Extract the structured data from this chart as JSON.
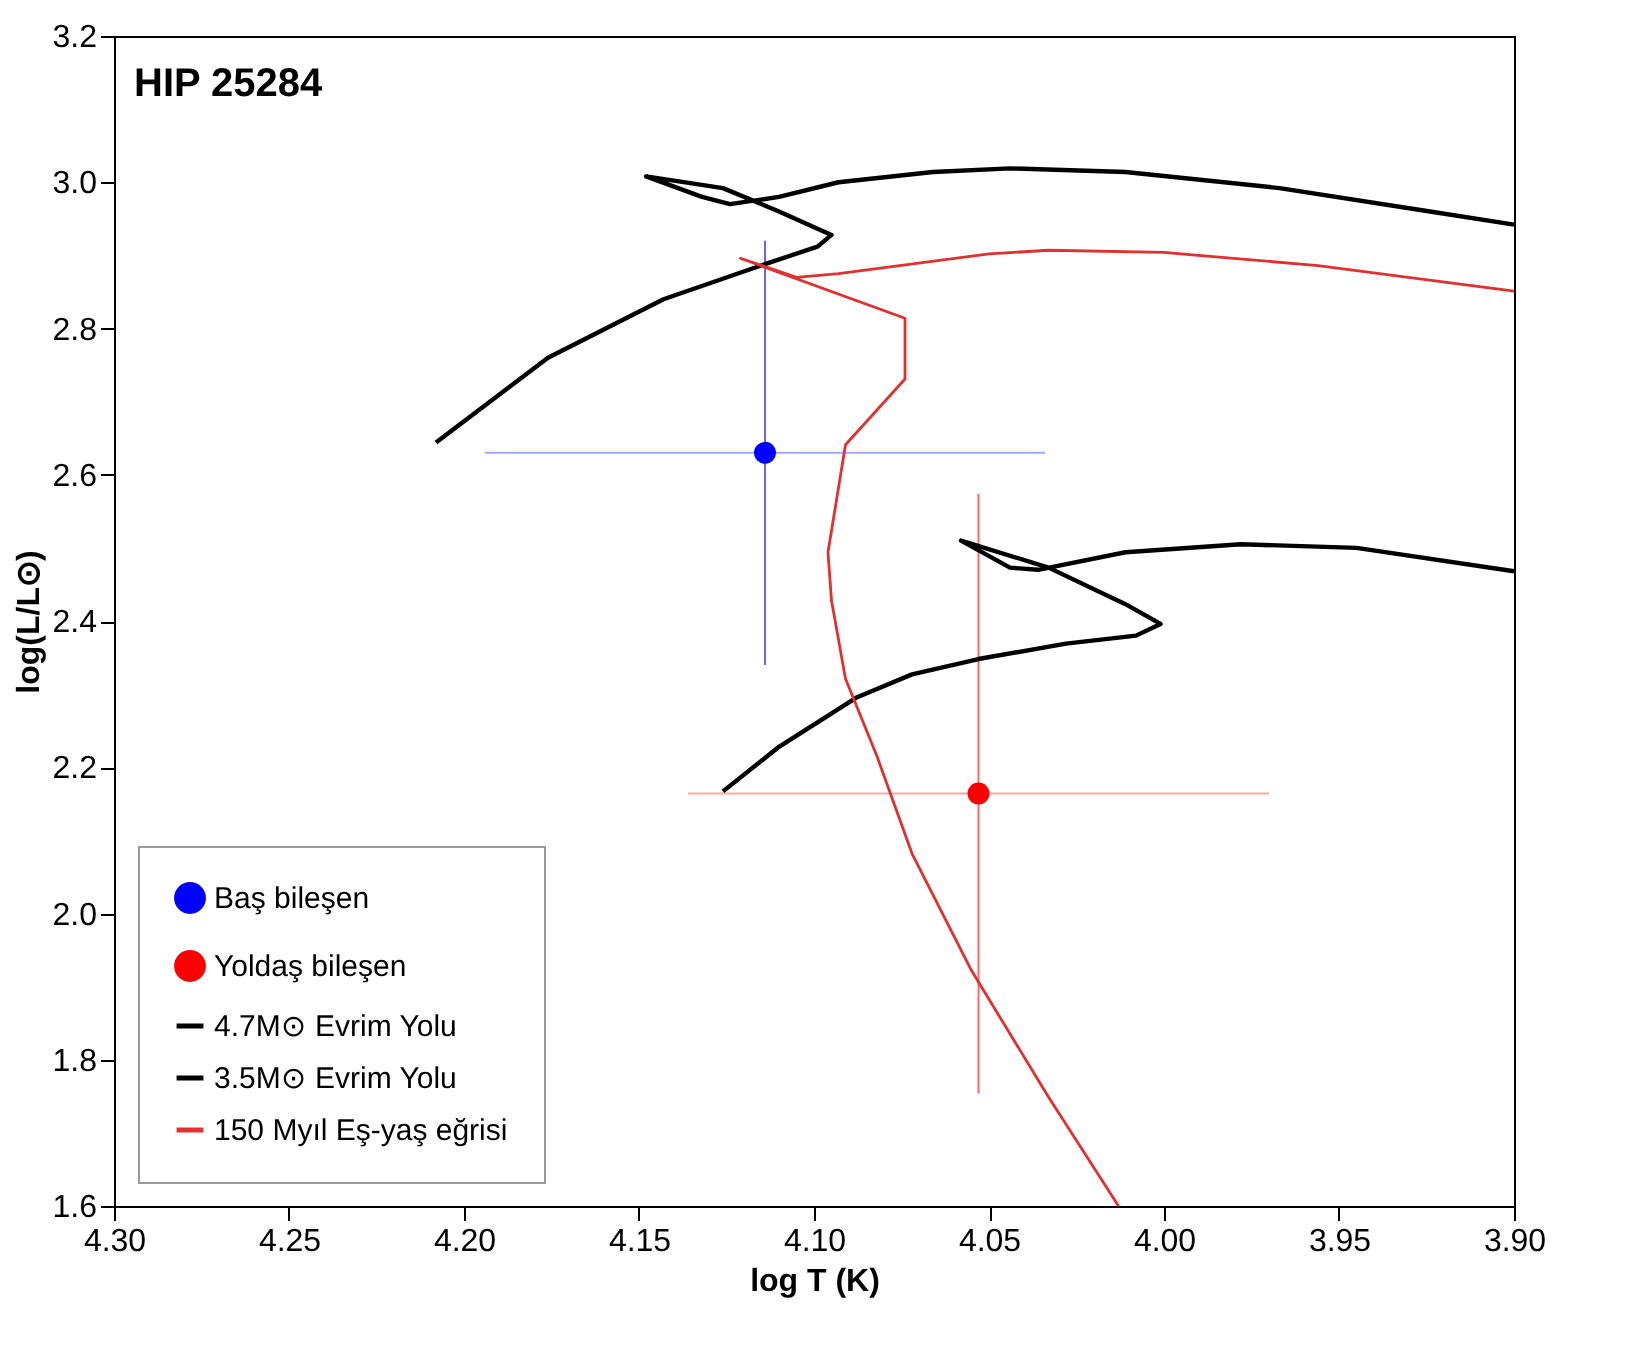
{
  "chart_data": {
    "type": "line",
    "title": "HIP 25284",
    "xlabel": "log T (K)",
    "ylabel": "log(L/L⊙)",
    "xlim": [
      4.3,
      3.9
    ],
    "ylim": [
      1.6,
      3.2
    ],
    "xticks": [
      {
        "value": 4.3,
        "label": "4.30"
      },
      {
        "value": 4.25,
        "label": "4.25"
      },
      {
        "value": 4.2,
        "label": "4.20"
      },
      {
        "value": 4.15,
        "label": "4.15"
      },
      {
        "value": 4.1,
        "label": "4.10"
      },
      {
        "value": 4.05,
        "label": "4.05"
      },
      {
        "value": 4.0,
        "label": "4.00"
      },
      {
        "value": 3.95,
        "label": "3.95"
      },
      {
        "value": 3.9,
        "label": "3.90"
      }
    ],
    "yticks": [
      {
        "value": 1.6,
        "label": "1.6"
      },
      {
        "value": 1.8,
        "label": "1.8"
      },
      {
        "value": 2.0,
        "label": "2.0"
      },
      {
        "value": 2.2,
        "label": "2.2"
      },
      {
        "value": 2.4,
        "label": "2.4"
      },
      {
        "value": 2.6,
        "label": "2.6"
      },
      {
        "value": 2.8,
        "label": "2.8"
      },
      {
        "value": 3.0,
        "label": "3.0"
      },
      {
        "value": 3.2,
        "label": "3.2"
      }
    ],
    "grid": false,
    "legend": "bottom left",
    "series": [
      {
        "name": "Baş bileşen",
        "type": "scatter",
        "marker": "circle",
        "color": "#0000ff",
        "x": [
          4.114
        ],
        "values": [
          2.63
        ],
        "xerrors": [
          0.08
        ],
        "errors": [
          0.29
        ]
      },
      {
        "name": "Yoldaş bileşen",
        "type": "scatter",
        "marker": "circle",
        "color": "#ff0000",
        "x": [
          4.053
        ],
        "values": [
          2.164
        ],
        "xerrors": [
          0.083
        ],
        "errors": [
          0.41
        ]
      },
      {
        "name": "4.7M⊙ Evrim Yolu",
        "color": "#000000",
        "x": [
          4.208,
          4.176,
          4.143,
          4.114,
          4.099,
          4.095,
          4.11,
          4.126,
          4.148,
          4.132,
          4.124,
          4.11,
          4.093,
          4.066,
          4.044,
          4.011,
          3.967,
          3.924,
          3.9
        ],
        "values": [
          2.644,
          2.76,
          2.84,
          2.888,
          2.912,
          2.928,
          2.96,
          2.992,
          3.008,
          2.98,
          2.97,
          2.98,
          3.0,
          3.014,
          3.019,
          3.014,
          2.992,
          2.96,
          2.942
        ]
      },
      {
        "name": "3.5M⊙ Evrim Yolu",
        "color": "#000000",
        "x": [
          4.126,
          4.11,
          4.088,
          4.072,
          4.053,
          4.028,
          4.008,
          4.001,
          4.011,
          4.033,
          4.058,
          4.044,
          4.036,
          4.011,
          3.978,
          3.945,
          3.9
        ],
        "values": [
          2.167,
          2.228,
          2.295,
          2.327,
          2.348,
          2.369,
          2.38,
          2.396,
          2.423,
          2.473,
          2.51,
          2.473,
          2.47,
          2.494,
          2.505,
          2.5,
          2.468
        ]
      },
      {
        "name": "150 Myıl Eş-yaş eğrisi",
        "color": "#e03030",
        "x": [
          4.013,
          4.033,
          4.055,
          4.072,
          4.082,
          4.091,
          4.095,
          4.096,
          4.091,
          4.074,
          4.074,
          4.121,
          4.105,
          4.093,
          4.05,
          4.033,
          4.0,
          3.956,
          3.9
        ],
        "values": [
          1.6,
          1.749,
          1.922,
          2.082,
          2.215,
          2.321,
          2.428,
          2.494,
          2.641,
          2.731,
          2.814,
          2.896,
          2.87,
          2.875,
          2.902,
          2.907,
          2.904,
          2.886,
          2.851
        ]
      }
    ]
  }
}
